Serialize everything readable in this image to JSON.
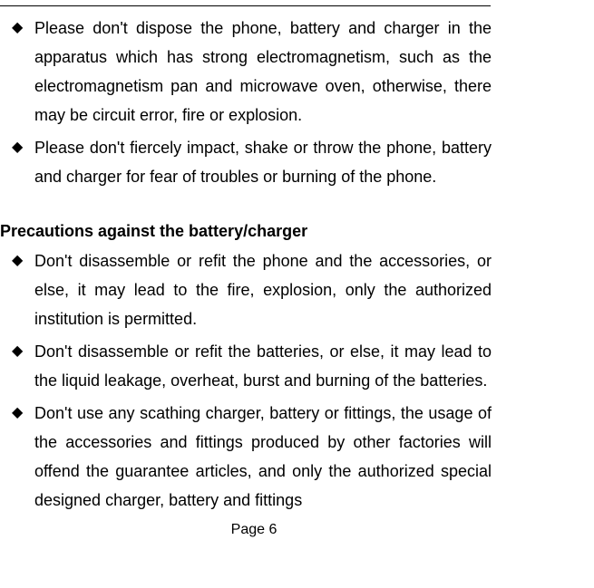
{
  "section1": {
    "items": [
      "Please don't dispose the phone, battery and charger in the apparatus which has strong electromagnetism, such as the electromagnetism pan and microwave oven, otherwise, there may be circuit error, fire or explosion.",
      "Please don't fiercely impact, shake or throw the phone, battery and charger for fear of troubles or burning of the phone."
    ]
  },
  "heading": "Precautions against the battery/charger",
  "section2": {
    "items": [
      "Don't disassemble or refit the phone and the accessories, or else, it may lead to the fire, explosion, only the authorized institution is permitted.",
      "Don't disassemble or refit the batteries, or else, it may lead to the liquid leakage, overheat, burst and burning of the batteries.",
      "Don't use any scathing charger, battery or fittings, the usage of the accessories and fittings produced by other factories will offend the guarantee articles, and only the authorized special designed charger, battery and fittings"
    ]
  },
  "bullet_glyph": "◆",
  "page_label": "Page 6"
}
